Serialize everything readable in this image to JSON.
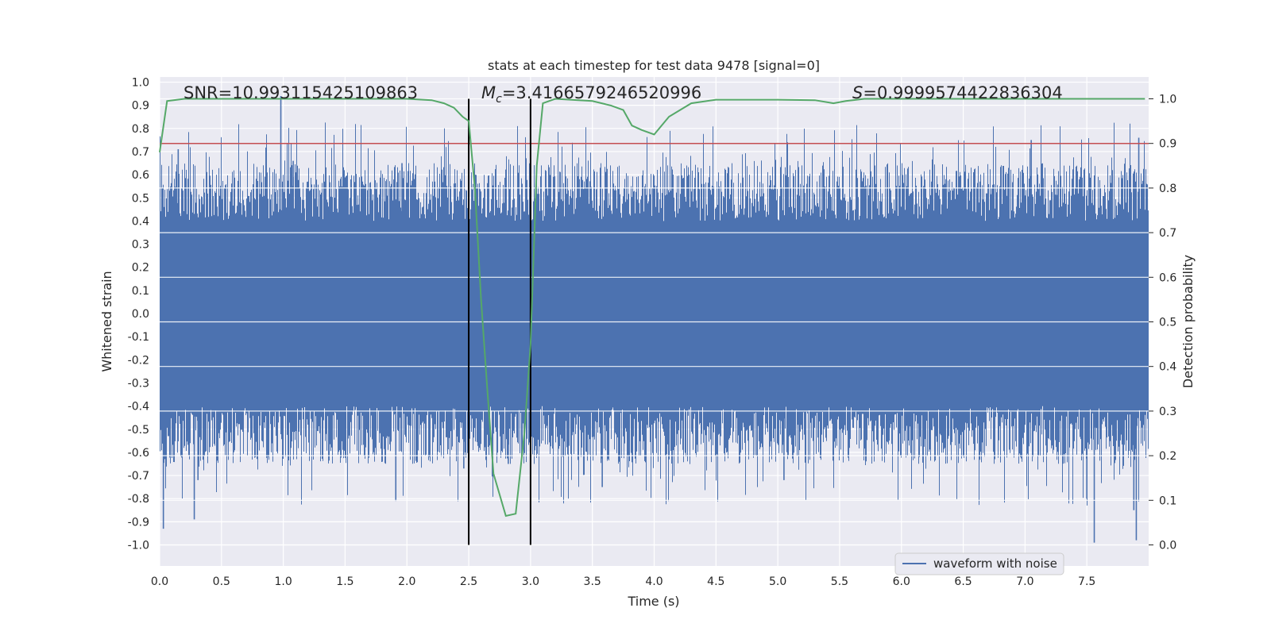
{
  "chart_data": {
    "type": "line",
    "title": "stats at each timestep for test data 9478 [signal=0]",
    "xlabel": "Time (s)",
    "ylabel_left": "Whitened strain",
    "ylabel_right": "Detection probability",
    "xlim": [
      0.0,
      8.0
    ],
    "ylim_left": [
      -1.0,
      1.0
    ],
    "ylim_right": [
      0.0,
      1.0
    ],
    "x_ticks": [
      "0.0",
      "0.5",
      "1.0",
      "1.5",
      "2.0",
      "2.5",
      "3.0",
      "3.5",
      "4.0",
      "4.5",
      "5.0",
      "5.5",
      "6.0",
      "6.5",
      "7.0",
      "7.5"
    ],
    "y_ticks_left": [
      "1.0",
      "0.9",
      "0.8",
      "0.7",
      "0.6",
      "0.5",
      "0.4",
      "0.3",
      "0.2",
      "0.1",
      "0.0",
      "-0.1",
      "-0.2",
      "-0.3",
      "-0.4",
      "-0.5",
      "-0.6",
      "-0.7",
      "-0.8",
      "-0.9",
      "-1.0"
    ],
    "y_ticks_right": [
      "1.0",
      "0.9",
      "0.8",
      "0.7",
      "0.6",
      "0.5",
      "0.4",
      "0.3",
      "0.2",
      "0.1",
      "0.0"
    ],
    "annotations": {
      "snr": "SNR=10.993115425109863",
      "mc_symbol": "M",
      "mc_sub": "c",
      "mc_value": "=3.4166579246520996",
      "s_symbol": "S",
      "s_value": "=0.9999574422836304"
    },
    "threshold": {
      "axis": "right",
      "value": 0.9,
      "color": "#c44e52"
    },
    "window_markers": {
      "x": [
        2.5,
        3.0
      ],
      "y_top_right": 1.0,
      "color": "#000000"
    },
    "series": [
      {
        "name": "waveform with noise",
        "axis": "left",
        "color": "#4c72b0",
        "style": "noise",
        "envelope_core": 0.35,
        "spikes": [
          {
            "x": 0.03,
            "y": -0.93
          },
          {
            "x": 0.15,
            "y": 0.71
          },
          {
            "x": 0.28,
            "y": -0.89
          },
          {
            "x": 0.31,
            "y": -0.72
          },
          {
            "x": 0.98,
            "y": 0.94
          },
          {
            "x": 1.08,
            "y": 0.66
          },
          {
            "x": 1.91,
            "y": -0.81
          },
          {
            "x": 1.96,
            "y": 0.65
          },
          {
            "x": 2.46,
            "y": -0.67
          },
          {
            "x": 2.82,
            "y": -0.65
          },
          {
            "x": 3.58,
            "y": -0.75
          },
          {
            "x": 5.05,
            "y": -0.72
          },
          {
            "x": 7.05,
            "y": 0.75
          },
          {
            "x": 7.56,
            "y": -0.99
          },
          {
            "x": 7.9,
            "y": -0.98
          },
          {
            "x": 7.92,
            "y": 0.76
          },
          {
            "x": 7.88,
            "y": -0.85
          },
          {
            "x": 7.5,
            "y": -0.8
          }
        ]
      },
      {
        "name": "detection probability",
        "axis": "right",
        "color": "#55a868",
        "style": "line",
        "x": [
          0.0,
          0.06,
          0.2,
          0.5,
          1.0,
          1.5,
          2.0,
          2.2,
          2.3,
          2.38,
          2.45,
          2.5,
          2.55,
          2.6,
          2.65,
          2.7,
          2.8,
          2.88,
          2.95,
          3.0,
          3.05,
          3.1,
          3.2,
          3.5,
          3.65,
          3.75,
          3.82,
          3.9,
          4.0,
          4.06,
          4.12,
          4.3,
          4.5,
          4.8,
          5.0,
          5.3,
          5.45,
          5.55,
          5.7,
          6.0,
          7.0,
          7.97
        ],
        "y": [
          0.88,
          0.995,
          1.0,
          1.0,
          1.0,
          1.0,
          1.0,
          0.997,
          0.99,
          0.98,
          0.96,
          0.95,
          0.8,
          0.55,
          0.35,
          0.16,
          0.065,
          0.07,
          0.25,
          0.45,
          0.85,
          0.99,
          1.0,
          0.995,
          0.985,
          0.975,
          0.94,
          0.93,
          0.92,
          0.94,
          0.96,
          0.99,
          0.998,
          0.998,
          0.998,
          0.997,
          0.99,
          0.995,
          1.0,
          1.0,
          1.0,
          1.0
        ]
      }
    ],
    "legend": {
      "entries": [
        "waveform with noise"
      ],
      "placement": "lower-right"
    },
    "grid": true
  }
}
